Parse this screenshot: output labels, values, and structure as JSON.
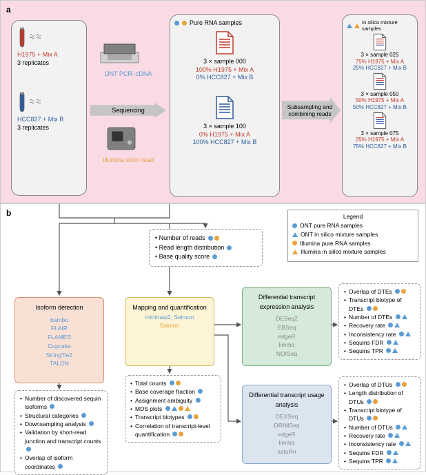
{
  "colors": {
    "ont": "#5b9bd5",
    "illumina": "#e8a33d",
    "red": "#c0392b",
    "blue": "#2e5c9e",
    "panel_a_bg": "#f9dae5",
    "box_bg": "#f2f2f2",
    "iso_bg": "#f9e0d5",
    "map_bg": "#fdf4d5",
    "dte_bg": "#d5ead8",
    "dtu_bg": "#dbe5f0"
  },
  "panelA": {
    "label": "a",
    "sample1": {
      "name": "H1975 + Mix A",
      "reps": "3 replicates"
    },
    "sample2": {
      "name": "HCC827 + Mix B",
      "reps": "3 replicates"
    },
    "seq1": "ONT PCR–cDNA",
    "seq_arrow": "Sequencing",
    "seq2": "Illumina short read",
    "pure_header": "Pure RNA samples",
    "pure1": {
      "title": "3 × sample 000",
      "l1": "100% H1975 + Mix A",
      "l2": "0% HCC827 + Mix B"
    },
    "pure2": {
      "title": "3 × sample 100",
      "l1": "0% H1975 + Mix A",
      "l2": "100% HCC827 + Mix B"
    },
    "sub_arrow": "Subsampling and combining reads",
    "silico_header": "In silico mixture samples",
    "silico1": {
      "title": "3 × sample 025",
      "l1": "75% H1975 + Mix A",
      "l2": "25% HCC827 + Mix B"
    },
    "silico2": {
      "title": "3 × sample 050",
      "l1": "50% H1975 + Mix A",
      "l2": "50% HCC827 + Mix B"
    },
    "silico3": {
      "title": "3 × sample 075",
      "l1": "25% H1975 + Mix A",
      "l2": "75% HCC827 + Mix B"
    }
  },
  "panelB": {
    "label": "b",
    "legend": {
      "title": "Legend",
      "items": [
        "ONT pure RNA samples",
        "ONT in silico mixture samples",
        "Illumina pure RNA samples",
        "Illumina in silico mixture samples"
      ]
    },
    "qc": [
      {
        "t": "Number of reads",
        "icons": [
          "dot-ont",
          "dot-ill"
        ]
      },
      {
        "t": "Read length distribution",
        "icons": [
          "dot-ont"
        ]
      },
      {
        "t": "Base quality score",
        "icons": [
          "dot-ont"
        ]
      }
    ],
    "iso": {
      "title": "Isoform detection",
      "tools": [
        "bambu",
        "FLAIR",
        "FLAMES",
        "Cupcake",
        "StringTie2",
        "TALON"
      ]
    },
    "map": {
      "title": "Mapping and quantification",
      "tools_ont": "minimap2, Salmon",
      "tools_ill": "Salmon"
    },
    "dte": {
      "title": "Differential transcript expression analysis",
      "tools": [
        "DESeq2",
        "EBSeq",
        "edgeR",
        "limma",
        "NOISeq"
      ]
    },
    "dtu": {
      "title": "Differential transcript usage analysis",
      "tools": [
        "DEXSeq",
        "DRIMSeq",
        "edgeR",
        "limma",
        "satuRn"
      ]
    },
    "iso_res": [
      {
        "t": "Number of discovered sequin isoforms",
        "icons": [
          "dot-ont"
        ]
      },
      {
        "t": "Structural categories",
        "icons": [
          "dot-ont"
        ]
      },
      {
        "t": "Downsampling analysis",
        "icons": [
          "dot-ont"
        ]
      },
      {
        "t": "Validation by short-read junction and transcript counts",
        "icons": [
          "dot-ont"
        ]
      },
      {
        "t": "Overlap of isoform coordinates",
        "icons": [
          "dot-ont"
        ]
      }
    ],
    "map_res": [
      {
        "t": "Total counts",
        "icons": [
          "dot-ont",
          "dot-ill"
        ]
      },
      {
        "t": "Base coverage fraction",
        "icons": [
          "dot-ont"
        ]
      },
      {
        "t": "Assignment ambiguity",
        "icons": [
          "dot-ont"
        ]
      },
      {
        "t": "MDS plots",
        "icons": [
          "dot-ont",
          "tri-ont",
          "dot-ill",
          "tri-ill"
        ]
      },
      {
        "t": "Transcript biotypes",
        "icons": [
          "dot-ont",
          "dot-ill"
        ]
      },
      {
        "t": "Correlation of transcript-level quantification",
        "icons": [
          "dot-ont",
          "dot-ill"
        ]
      }
    ],
    "dte_res": [
      {
        "t": "Overlap of DTEs",
        "icons": [
          "dot-ont",
          "dot-ill"
        ]
      },
      {
        "t": "Transcript biotype of DTEs",
        "icons": [
          "dot-ont",
          "dot-ill"
        ]
      },
      {
        "t": "Number of DTEs",
        "icons": [
          "dot-ont",
          "tri-ont"
        ]
      },
      {
        "t": "Recovery rate",
        "icons": [
          "dot-ont",
          "tri-ont"
        ]
      },
      {
        "t": "Inconsistency rate",
        "icons": [
          "dot-ont",
          "tri-ont"
        ]
      },
      {
        "t": "Sequins FDR",
        "icons": [
          "dot-ont",
          "tri-ont"
        ]
      },
      {
        "t": "Sequins TPR",
        "icons": [
          "dot-ont",
          "tri-ont"
        ]
      }
    ],
    "dtu_res": [
      {
        "t": "Overlap of DTUs",
        "icons": [
          "dot-ont",
          "dot-ill"
        ]
      },
      {
        "t": "Length distribution of DTUs",
        "icons": [
          "dot-ont",
          "dot-ill"
        ]
      },
      {
        "t": "Transcript biotype of DTUs",
        "icons": [
          "dot-ont",
          "dot-ill"
        ]
      },
      {
        "t": "Number of DTUs",
        "icons": [
          "dot-ont",
          "tri-ont"
        ]
      },
      {
        "t": "Recovery rate",
        "icons": [
          "dot-ont",
          "tri-ont"
        ]
      },
      {
        "t": "Inconsistency rate",
        "icons": [
          "dot-ont",
          "tri-ont"
        ]
      },
      {
        "t": "Sequins FDR",
        "icons": [
          "dot-ont",
          "tri-ont"
        ]
      },
      {
        "t": "Sequins TPR",
        "icons": [
          "dot-ont",
          "tri-ont"
        ]
      }
    ]
  }
}
